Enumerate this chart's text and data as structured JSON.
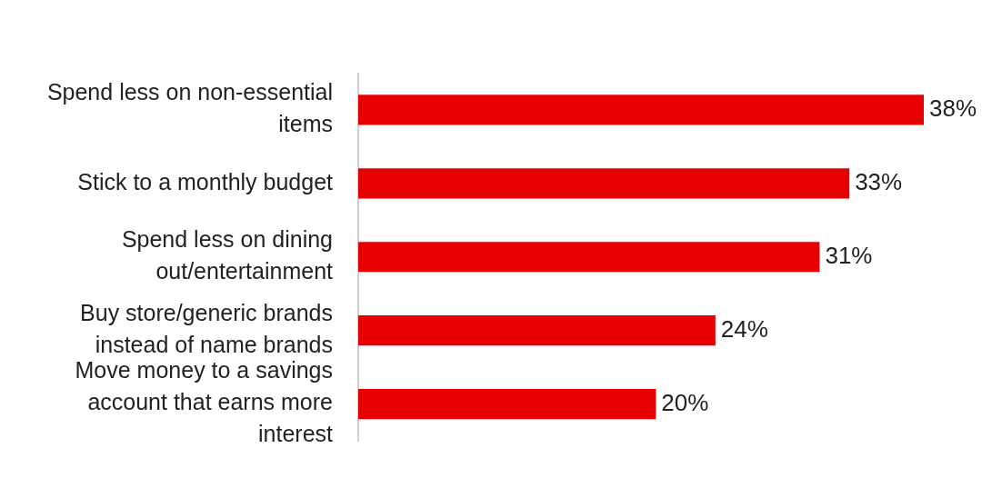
{
  "chart_data": {
    "type": "bar",
    "orientation": "horizontal",
    "categories": [
      "Spend less on non-essential items",
      "Stick to a monthly budget",
      "Spend less on dining out/entertainment",
      "Buy store/generic brands instead of name brands",
      "Move money to a savings account that earns more interest"
    ],
    "values": [
      38,
      33,
      31,
      24,
      20
    ],
    "value_labels": [
      "38%",
      "33%",
      "31%",
      "24%",
      "20%"
    ],
    "color": "#e70000",
    "legend": false
  }
}
